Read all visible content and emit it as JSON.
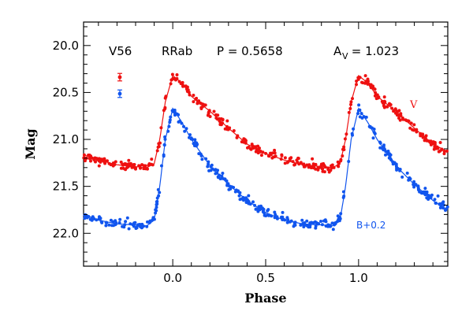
{
  "chart_data": {
    "type": "scatter",
    "xlabel": "Phase",
    "ylabel": "Mag",
    "xlim": [
      -0.48,
      1.48
    ],
    "ylim": [
      22.35,
      19.75
    ],
    "y_inverted": true,
    "x_ticks": [
      "0.0",
      "0.5",
      "1.0"
    ],
    "y_ticks": [
      "20.0",
      "20.5",
      "21.0",
      "21.5",
      "22.0"
    ],
    "grid": false,
    "header": {
      "star": "V56",
      "type": "RRab",
      "period": "P = 0.5658",
      "amplitude_symbol": "A",
      "amplitude_sub": "V",
      "amplitude_value": " = 1.023"
    },
    "colors": {
      "V": "#ee1111",
      "B": "#1155ee"
    },
    "series": [
      {
        "name": "V",
        "label": "V",
        "curve": [
          [
            0.0,
            20.32
          ],
          [
            0.05,
            20.4
          ],
          [
            0.1,
            20.54
          ],
          [
            0.15,
            20.62
          ],
          [
            0.2,
            20.7
          ],
          [
            0.3,
            20.88
          ],
          [
            0.4,
            21.05
          ],
          [
            0.5,
            21.15
          ],
          [
            0.6,
            21.22
          ],
          [
            0.7,
            21.27
          ],
          [
            0.8,
            21.29
          ],
          [
            0.86,
            21.3
          ],
          [
            0.9,
            21.26
          ],
          [
            0.93,
            21.0
          ],
          [
            0.96,
            20.6
          ],
          [
            1.0,
            20.32
          ]
        ],
        "error_bar": 0.04
      },
      {
        "name": "B+0.2",
        "label": "B+0.2",
        "curve": [
          [
            0.0,
            20.67
          ],
          [
            0.05,
            20.82
          ],
          [
            0.1,
            21.0
          ],
          [
            0.15,
            21.14
          ],
          [
            0.2,
            21.28
          ],
          [
            0.3,
            21.48
          ],
          [
            0.4,
            21.65
          ],
          [
            0.5,
            21.78
          ],
          [
            0.6,
            21.86
          ],
          [
            0.7,
            21.9
          ],
          [
            0.8,
            21.91
          ],
          [
            0.86,
            21.92
          ],
          [
            0.9,
            21.86
          ],
          [
            0.93,
            21.5
          ],
          [
            0.96,
            21.0
          ],
          [
            1.0,
            20.67
          ]
        ],
        "error_bar": 0.04
      }
    ]
  }
}
